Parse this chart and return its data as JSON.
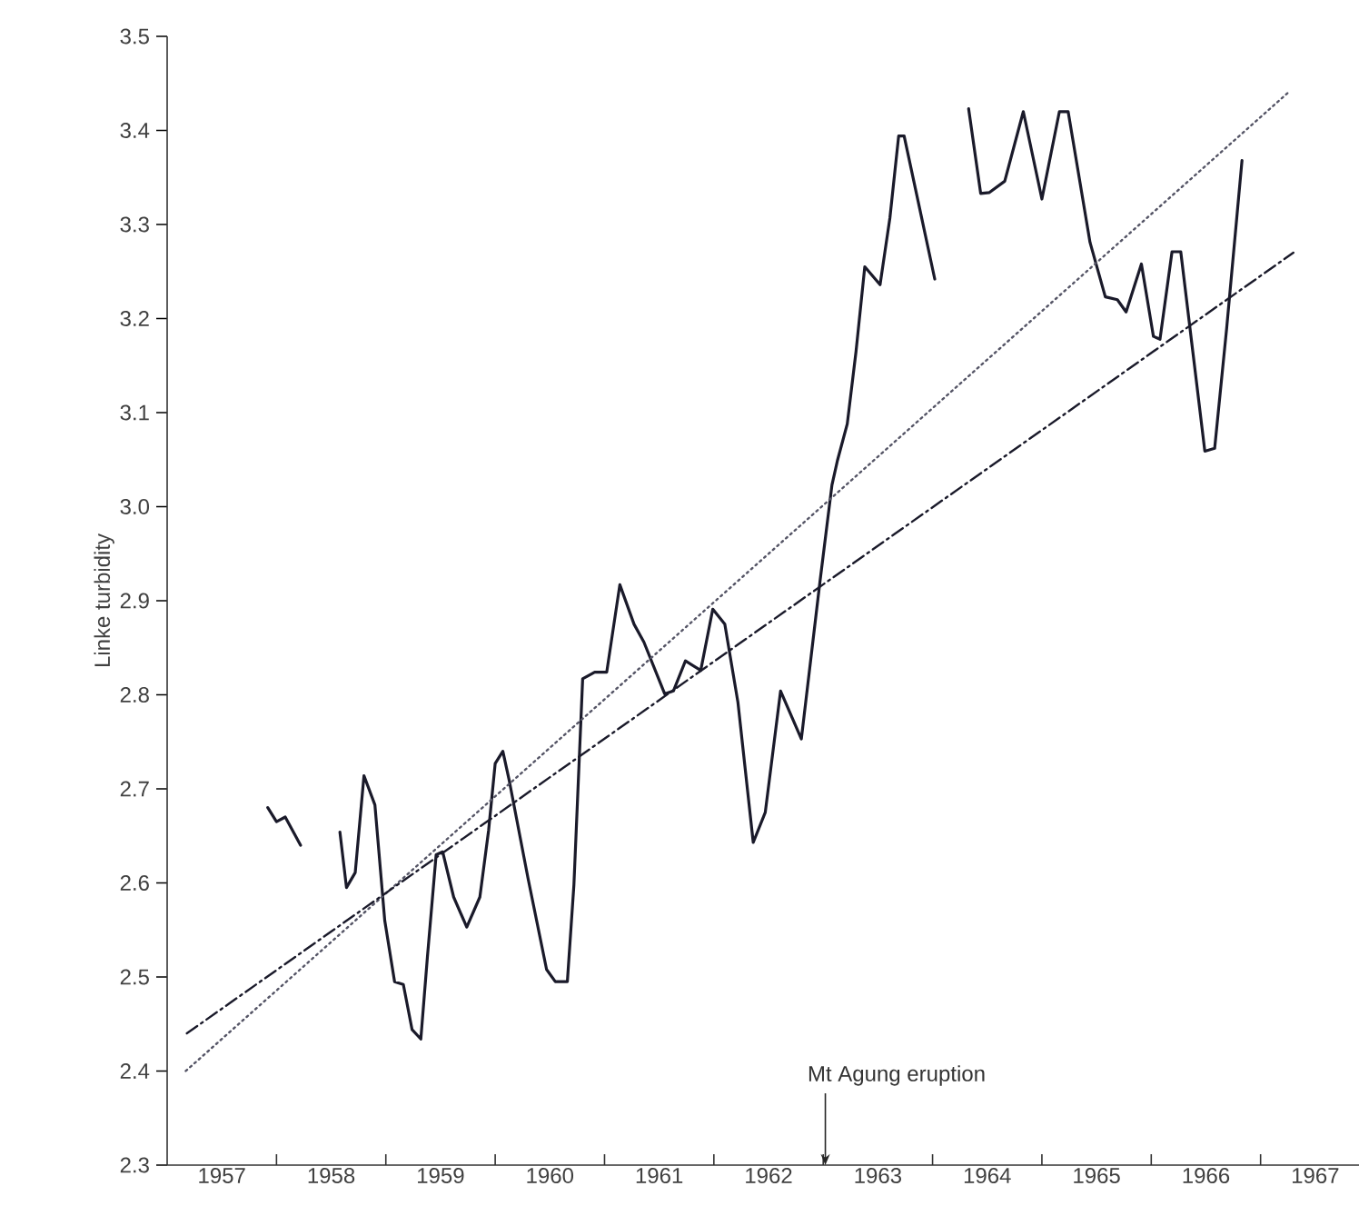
{
  "chart_data": {
    "type": "line",
    "ylabel": "Linke turbidity",
    "xlim": [
      1957,
      1967.9
    ],
    "ylim": [
      2.3,
      3.5
    ],
    "xticks": [
      {
        "value": 1957.5,
        "label": "1957"
      },
      {
        "value": 1958,
        "label": null
      },
      {
        "value": 1958.5,
        "label": "1958"
      },
      {
        "value": 1959,
        "label": null
      },
      {
        "value": 1959.5,
        "label": "1959"
      },
      {
        "value": 1960,
        "label": null
      },
      {
        "value": 1960.5,
        "label": "1960"
      },
      {
        "value": 1961,
        "label": null
      },
      {
        "value": 1961.5,
        "label": "1961"
      },
      {
        "value": 1962,
        "label": null
      },
      {
        "value": 1962.5,
        "label": "1962"
      },
      {
        "value": 1963,
        "label": null
      },
      {
        "value": 1963.5,
        "label": "1963"
      },
      {
        "value": 1964,
        "label": null
      },
      {
        "value": 1964.5,
        "label": "1964"
      },
      {
        "value": 1965,
        "label": null
      },
      {
        "value": 1965.5,
        "label": "1965"
      },
      {
        "value": 1966,
        "label": null
      },
      {
        "value": 1966.5,
        "label": "1966"
      },
      {
        "value": 1967,
        "label": null
      },
      {
        "value": 1967.5,
        "label": "1967"
      }
    ],
    "yticks": [
      {
        "value": 2.3,
        "label": "2.3"
      },
      {
        "value": 2.4,
        "label": "2.4"
      },
      {
        "value": 2.5,
        "label": "2.5"
      },
      {
        "value": 2.6,
        "label": "2.6"
      },
      {
        "value": 2.7,
        "label": "2.7"
      },
      {
        "value": 2.8,
        "label": "2.8"
      },
      {
        "value": 2.9,
        "label": "2.9"
      },
      {
        "value": 3.0,
        "label": "3.0"
      },
      {
        "value": 3.1,
        "label": "3.1"
      },
      {
        "value": 3.2,
        "label": "3.2"
      },
      {
        "value": 3.3,
        "label": "3.3"
      },
      {
        "value": 3.4,
        "label": "3.4"
      },
      {
        "value": 3.5,
        "label": "3.5"
      }
    ],
    "grid": false,
    "marker": "none",
    "annotations": [
      "Mt Agung eruption"
    ],
    "series": [
      {
        "color": "#1a1a2a",
        "line_style": "solid",
        "x": [
          1957.92,
          1958.0,
          1958.08,
          1958.22,
          1958.4,
          1958.58,
          1958.64,
          1958.72,
          1958.8,
          1958.9,
          1958.99,
          1959.08,
          1959.16,
          1959.24,
          1959.32,
          1959.38,
          1959.46,
          1959.52,
          1959.62,
          1959.74,
          1959.86,
          1959.94,
          1960.0,
          1960.07,
          1960.13,
          1960.3,
          1960.47,
          1960.55,
          1960.66,
          1960.72,
          1960.8,
          1960.91,
          1961.02,
          1961.14,
          1961.27,
          1961.36,
          1961.55,
          1961.63,
          1961.74,
          1961.88,
          1961.99,
          1962.1,
          1962.22,
          1962.36,
          1962.47,
          1962.61,
          1962.8,
          1962.97,
          1963.08,
          1963.13,
          1963.22,
          1963.3,
          1963.38,
          1963.52,
          1963.61,
          1963.69,
          1963.74,
          1964.02,
          1964.2,
          1964.33,
          1964.44,
          1964.52,
          1964.66,
          1964.83,
          1965.0,
          1965.16,
          1965.24,
          1965.44,
          1965.58,
          1965.69,
          1965.77,
          1965.91,
          1966.02,
          1966.08,
          1966.19,
          1966.27,
          1966.38,
          1966.49,
          1966.58,
          1966.69,
          1966.83
        ],
        "values": [
          2.68,
          2.665,
          2.67,
          2.64,
          null,
          2.654,
          2.595,
          2.611,
          2.714,
          2.683,
          2.56,
          2.495,
          2.492,
          2.444,
          2.434,
          2.521,
          2.63,
          2.633,
          2.585,
          2.553,
          2.585,
          2.656,
          2.727,
          2.74,
          2.708,
          2.605,
          2.508,
          2.495,
          2.495,
          2.598,
          2.817,
          2.824,
          2.824,
          2.917,
          2.875,
          2.856,
          2.801,
          2.804,
          2.836,
          2.826,
          2.891,
          2.875,
          2.792,
          2.643,
          2.675,
          2.804,
          2.753,
          2.92,
          3.023,
          3.049,
          3.088,
          3.165,
          3.255,
          3.236,
          3.307,
          3.394,
          3.394,
          3.242,
          null,
          3.423,
          3.333,
          3.334,
          3.346,
          3.42,
          3.327,
          3.42,
          3.42,
          3.281,
          3.223,
          3.22,
          3.207,
          3.258,
          3.181,
          3.178,
          3.271,
          3.271,
          3.165,
          3.059,
          3.062,
          3.19,
          3.368
        ]
      },
      {
        "color": "#555566",
        "line_style": "dotted",
        "x": [
          1957.17,
          1967.25
        ],
        "values": [
          2.4,
          3.44
        ]
      },
      {
        "color": "#1a1a2a",
        "line_style": "dashed",
        "x": [
          1957.18,
          1967.3
        ],
        "values": [
          2.44,
          3.27
        ]
      }
    ]
  }
}
